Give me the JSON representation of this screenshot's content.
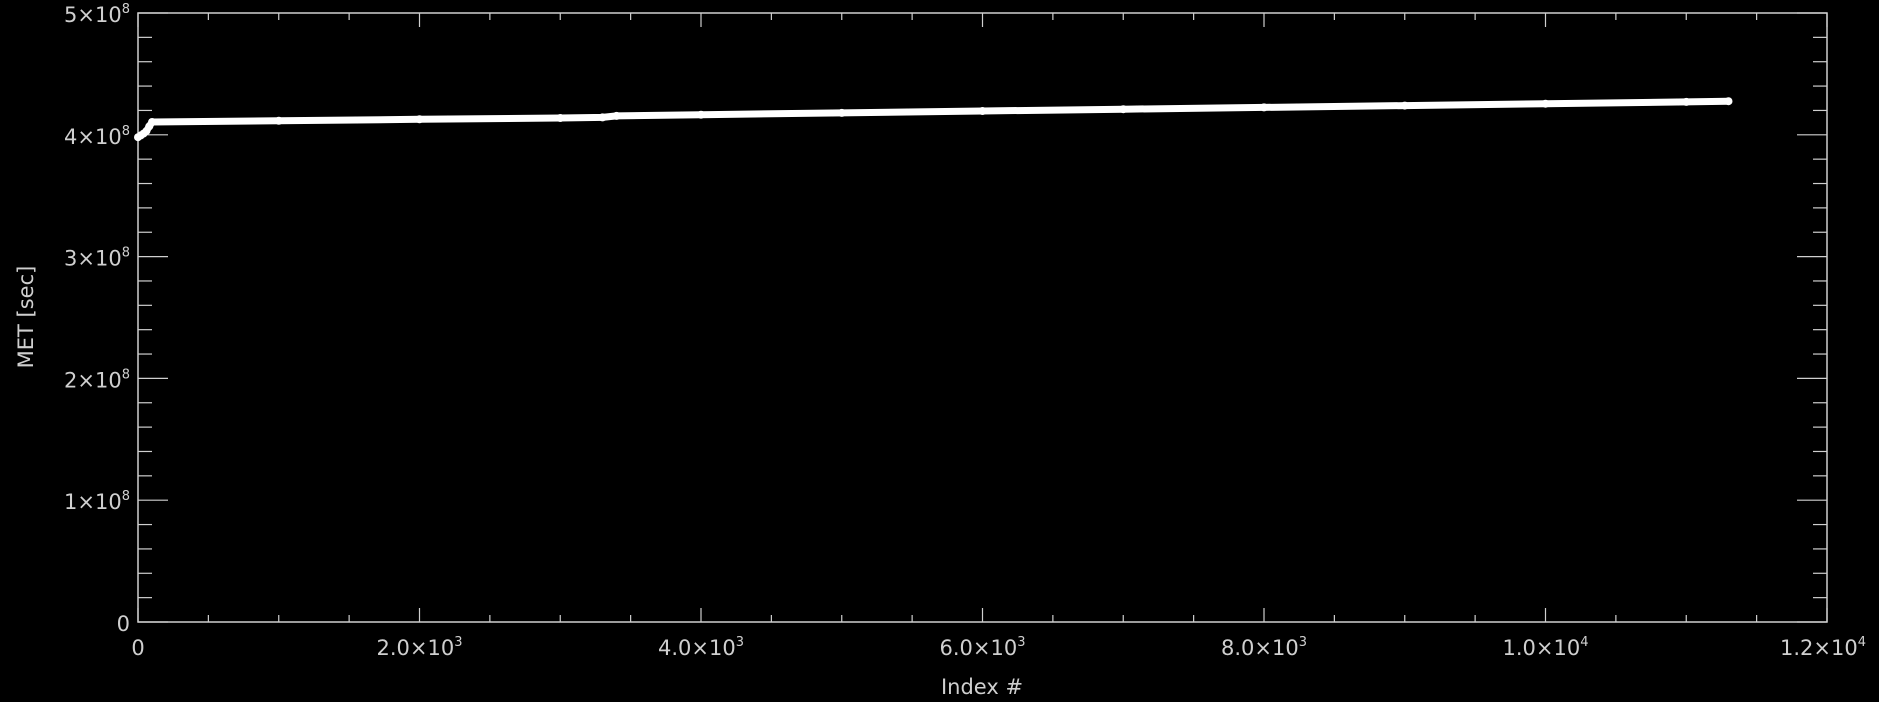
{
  "chart_data": {
    "type": "line",
    "title": "",
    "xlabel": "Index #",
    "ylabel": "MET [sec]",
    "xlim": [
      0,
      12000
    ],
    "ylim": [
      0,
      500000000
    ],
    "grid": false,
    "x_ticks": [
      {
        "value": 0,
        "mantissa": "0",
        "exp": ""
      },
      {
        "value": 2000,
        "mantissa": "2.0×10",
        "exp": "3"
      },
      {
        "value": 4000,
        "mantissa": "4.0×10",
        "exp": "3"
      },
      {
        "value": 6000,
        "mantissa": "6.0×10",
        "exp": "3"
      },
      {
        "value": 8000,
        "mantissa": "8.0×10",
        "exp": "3"
      },
      {
        "value": 10000,
        "mantissa": "1.0×10",
        "exp": "4"
      },
      {
        "value": 12000,
        "mantissa": "1.2×10",
        "exp": "4"
      }
    ],
    "y_ticks": [
      {
        "value": 0,
        "mantissa": "0",
        "exp": ""
      },
      {
        "value": 100000000,
        "mantissa": "1×10",
        "exp": "8"
      },
      {
        "value": 200000000,
        "mantissa": "2×10",
        "exp": "8"
      },
      {
        "value": 300000000,
        "mantissa": "3×10",
        "exp": "8"
      },
      {
        "value": 400000000,
        "mantissa": "4×10",
        "exp": "8"
      },
      {
        "value": 500000000,
        "mantissa": "5×10",
        "exp": "8"
      }
    ],
    "series": [
      {
        "color": "#ffffff",
        "x": [
          0,
          20,
          40,
          60,
          80,
          100,
          1000,
          2000,
          3000,
          3300,
          3400,
          4000,
          5000,
          6000,
          7000,
          8000,
          9000,
          10000,
          11000,
          11300
        ],
        "y": [
          398000000,
          399500000,
          401000000,
          403000000,
          407000000,
          410500000,
          411500000,
          412700000,
          413800000,
          414300000,
          415500000,
          416500000,
          418000000,
          419500000,
          421000000,
          422500000,
          424000000,
          425500000,
          427000000,
          427600000
        ]
      }
    ]
  }
}
